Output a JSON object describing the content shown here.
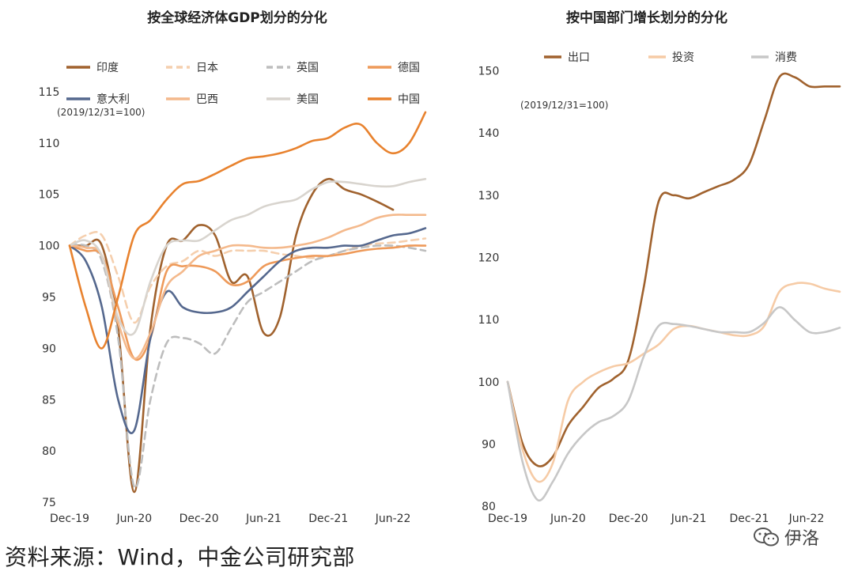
{
  "chart_data": [
    {
      "type": "line",
      "title": "按全球经济体GDP划分的分化",
      "note": "(2019/12/31=100)",
      "ylim": [
        74,
        117
      ],
      "yticks": [
        75,
        80,
        85,
        90,
        95,
        100,
        105,
        110,
        115
      ],
      "x_range": [
        0,
        11
      ],
      "xticks": [
        {
          "label": "Dec-19",
          "x": 0
        },
        {
          "label": "Jun-20",
          "x": 2
        },
        {
          "label": "Dec-20",
          "x": 4
        },
        {
          "label": "Jun-21",
          "x": 6
        },
        {
          "label": "Dec-21",
          "x": 8
        },
        {
          "label": "Jun-22",
          "x": 10
        }
      ],
      "series": [
        {
          "name": "印度",
          "color": "#a0622e",
          "dash": "solid",
          "x": [
            0,
            0.5,
            1,
            1.5,
            2,
            2.5,
            3,
            3.5,
            4,
            4.5,
            5,
            5.5,
            6,
            6.5,
            7,
            7.5,
            8,
            8.5,
            9,
            9.5,
            10
          ],
          "y": [
            100,
            100,
            100,
            92,
            76,
            92,
            100,
            100.5,
            102,
            101,
            96.5,
            97,
            91.5,
            93,
            101,
            105,
            106.5,
            105.5,
            105,
            104.3,
            103.5
          ]
        },
        {
          "name": "日本",
          "color": "#f5cfae",
          "dash": "dash",
          "x": [
            0,
            0.5,
            1,
            1.5,
            2,
            2.5,
            3,
            3.5,
            4,
            4.5,
            5,
            5.5,
            6,
            6.5,
            7,
            7.5,
            8,
            8.5,
            9,
            9.5,
            10,
            10.5,
            11
          ],
          "y": [
            100,
            101,
            101,
            97,
            92.5,
            96,
            98,
            98.5,
            99.5,
            99,
            99.5,
            99.5,
            99.5,
            99.2,
            99,
            98.8,
            99,
            99.5,
            100,
            100.2,
            100.3,
            100.5,
            100.7
          ]
        },
        {
          "name": "英国",
          "color": "#bdbdbd",
          "dash": "dash",
          "x": [
            0,
            0.5,
            1,
            1.5,
            2,
            2.5,
            3,
            3.5,
            4,
            4.5,
            5,
            5.5,
            6,
            6.5,
            7,
            7.5,
            8,
            8.5,
            9,
            9.5,
            10,
            10.5,
            11
          ],
          "y": [
            100,
            100,
            98.5,
            91,
            76.5,
            85,
            90.5,
            91,
            90.5,
            89.5,
            92,
            94.5,
            95.5,
            96.5,
            97.5,
            98.5,
            99,
            99.5,
            99.8,
            100,
            100,
            99.8,
            99.5
          ]
        },
        {
          "name": "德国",
          "color": "#ee9a5a",
          "dash": "solid",
          "x": [
            0,
            0.5,
            1,
            1.5,
            2,
            2.5,
            3,
            3.5,
            4,
            4.5,
            5,
            5.5,
            6,
            6.5,
            7,
            7.5,
            8,
            8.5,
            9,
            9.5,
            10,
            10.5,
            11
          ],
          "y": [
            100,
            99.5,
            99,
            94,
            89,
            91,
            97.5,
            98,
            98,
            97.5,
            96.2,
            96.5,
            98,
            98.5,
            98.8,
            99,
            99,
            99.2,
            99.5,
            99.7,
            99.8,
            100,
            100
          ]
        },
        {
          "name": "意大利",
          "color": "#55688e",
          "dash": "solid",
          "x": [
            0,
            0.5,
            1,
            1.5,
            2,
            2.5,
            3,
            3.5,
            4,
            4.5,
            5,
            5.5,
            6,
            6.5,
            7,
            7.5,
            8,
            8.5,
            9,
            9.5,
            10,
            10.5,
            11
          ],
          "y": [
            100,
            98.5,
            94,
            85,
            82,
            91,
            95.5,
            94,
            93.5,
            93.5,
            94,
            95.5,
            97,
            98.5,
            99.5,
            99.8,
            99.8,
            100,
            100,
            100.5,
            101,
            101.2,
            101.7
          ]
        },
        {
          "name": "巴西",
          "color": "#f4b98c",
          "dash": "solid",
          "x": [
            0,
            0.5,
            1,
            1.5,
            2,
            2.5,
            3,
            3.5,
            4,
            4.5,
            5,
            5.5,
            6,
            6.5,
            7,
            7.5,
            8,
            8.5,
            9,
            9.5,
            10,
            10.5,
            11
          ],
          "y": [
            100,
            99.8,
            99,
            92.5,
            89,
            91.5,
            96,
            97.5,
            99,
            99.5,
            100,
            100,
            99.8,
            99.8,
            100,
            100.3,
            100.8,
            101.5,
            102,
            102.7,
            103,
            103,
            103
          ]
        },
        {
          "name": "美国",
          "color": "#d8d4ce",
          "dash": "solid",
          "x": [
            0,
            0.5,
            1,
            1.5,
            2,
            2.5,
            3,
            3.5,
            4,
            4.5,
            5,
            5.5,
            6,
            6.5,
            7,
            7.5,
            8,
            8.5,
            9,
            9.5,
            10,
            10.5,
            11
          ],
          "y": [
            100,
            100.5,
            99,
            93,
            91.5,
            96.5,
            100,
            100.5,
            100.5,
            101.5,
            102.5,
            103,
            103.8,
            104.2,
            104.5,
            105.5,
            106.2,
            106.2,
            106,
            105.8,
            105.8,
            106.2,
            106.5
          ]
        },
        {
          "name": "中国",
          "color": "#e8822e",
          "dash": "solid",
          "x": [
            0,
            0.5,
            1,
            1.5,
            2,
            2.5,
            3,
            3.5,
            4,
            4.5,
            5,
            5.5,
            6,
            6.5,
            7,
            7.5,
            8,
            8.5,
            9,
            9.5,
            10,
            10.5,
            11
          ],
          "y": [
            100,
            94,
            90,
            95,
            101,
            102.5,
            104.5,
            106,
            106.3,
            107,
            107.8,
            108.5,
            108.7,
            109,
            109.5,
            110.2,
            110.5,
            111.5,
            111.8,
            110,
            109,
            110,
            113
          ]
        }
      ]
    },
    {
      "type": "line",
      "title": "按中国部门增长划分的分化",
      "note": "(2019/12/31=100)",
      "ylim": [
        79,
        153
      ],
      "yticks": [
        80,
        90,
        100,
        110,
        120,
        130,
        140,
        150
      ],
      "x_range": [
        0,
        11
      ],
      "xticks": [
        {
          "label": "Dec-19",
          "x": 0
        },
        {
          "label": "Jun-20",
          "x": 2
        },
        {
          "label": "Dec-20",
          "x": 4
        },
        {
          "label": "Jun-21",
          "x": 6
        },
        {
          "label": "Dec-21",
          "x": 8
        },
        {
          "label": "Jun-22",
          "x": 9.9
        }
      ],
      "series": [
        {
          "name": "出口",
          "color": "#a0622e",
          "dash": "solid",
          "x": [
            0,
            0.5,
            1,
            1.5,
            2,
            2.5,
            3,
            3.5,
            4,
            4.5,
            5,
            5.5,
            6,
            6.5,
            7,
            7.5,
            8,
            8.5,
            9,
            9.5,
            10,
            10.5,
            11
          ],
          "y": [
            100,
            90,
            86.5,
            88,
            93,
            96,
            99,
            100.5,
            103.5,
            115,
            129,
            130,
            129.5,
            130.5,
            131.5,
            132.5,
            135,
            142,
            149,
            149,
            147.5,
            147.5,
            147.5
          ]
        },
        {
          "name": "投资",
          "color": "#f6cba6",
          "dash": "solid",
          "x": [
            0,
            0.5,
            1,
            1.5,
            2,
            2.5,
            3,
            3.5,
            4,
            4.5,
            5,
            5.5,
            6,
            6.5,
            7,
            7.5,
            8,
            8.5,
            9,
            9.5,
            10,
            10.5,
            11
          ],
          "y": [
            100,
            89,
            84,
            87,
            97,
            100,
            101.5,
            102.5,
            103,
            104.5,
            106,
            108.5,
            109,
            108.5,
            108,
            107.5,
            107.5,
            109,
            114.5,
            115.8,
            115.8,
            115,
            114.5
          ]
        },
        {
          "name": "消费",
          "color": "#c7c7c7",
          "dash": "solid",
          "x": [
            0,
            0.5,
            1,
            1.5,
            2,
            2.5,
            3,
            3.5,
            4,
            4.5,
            5,
            5.5,
            6,
            6.5,
            7,
            7.5,
            8,
            8.5,
            9,
            9.5,
            10,
            10.5,
            11
          ],
          "y": [
            100,
            87,
            81,
            84,
            88.5,
            91.5,
            93.5,
            94.5,
            97,
            104,
            109,
            109.3,
            109,
            108.5,
            108,
            108,
            108,
            109.5,
            112,
            110,
            108,
            108,
            108.7
          ]
        }
      ]
    }
  ],
  "footer": {
    "source": "资料来源：Wind，中金公司研究部",
    "watermark": "伊洛"
  }
}
